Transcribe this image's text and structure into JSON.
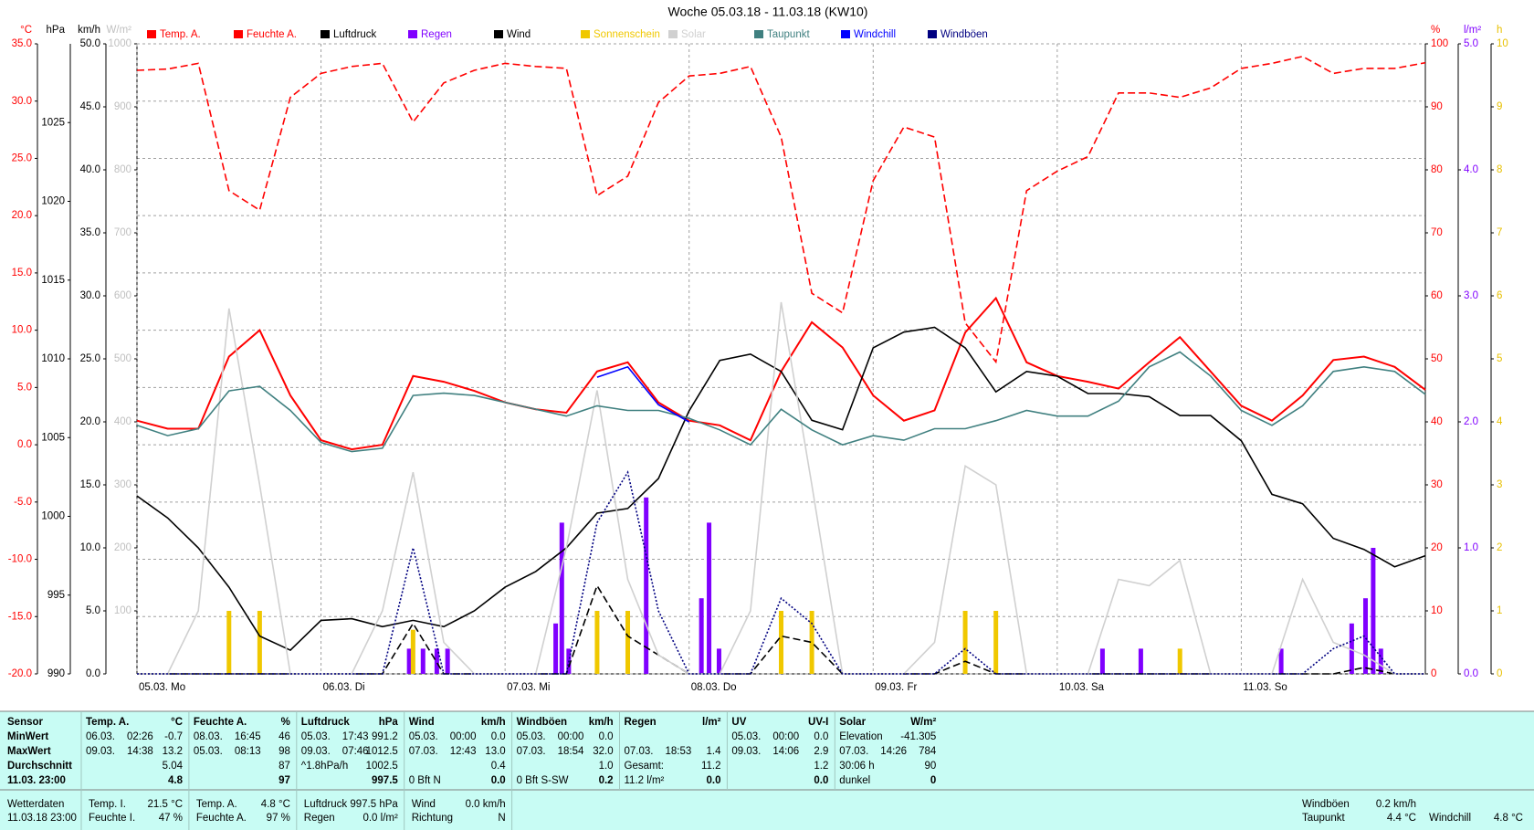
{
  "chart_data": {
    "type": "line",
    "title": "Woche 05.03.18 - 11.03.18 (KW10)",
    "grid": true,
    "x": [
      0,
      4,
      8,
      12,
      16,
      20,
      24,
      28,
      32,
      36,
      40,
      44,
      48,
      52,
      56,
      60,
      64,
      68,
      72,
      76,
      80,
      84,
      88,
      92,
      96,
      100,
      104,
      108,
      112,
      116,
      120,
      124,
      128,
      132,
      136,
      140,
      144,
      148,
      152,
      156,
      160,
      164,
      168
    ],
    "xlim": [
      0,
      168
    ],
    "xticks": [
      {
        "value": 0,
        "label": "05.03. Mo"
      },
      {
        "value": 24,
        "label": "06.03. Di"
      },
      {
        "value": 48,
        "label": "07.03. Mi"
      },
      {
        "value": 72,
        "label": "08.03. Do"
      },
      {
        "value": 96,
        "label": "09.03. Fr"
      },
      {
        "value": 120,
        "label": "10.03. Sa"
      },
      {
        "value": 144,
        "label": "11.03. So"
      }
    ],
    "axes": [
      {
        "id": "temp",
        "label": "°C",
        "side": "left",
        "color": "#ff0000",
        "lim": [
          -20,
          35
        ],
        "ticks": [
          {
            "value": -20,
            "label": "-20.0"
          },
          {
            "value": -15,
            "label": "-15.0"
          },
          {
            "value": -10,
            "label": "-10.0"
          },
          {
            "value": -5,
            "label": "-5.0"
          },
          {
            "value": 0,
            "label": "0.0"
          },
          {
            "value": 5,
            "label": "5.0"
          },
          {
            "value": 10,
            "label": "10.0"
          },
          {
            "value": 15,
            "label": "15.0"
          },
          {
            "value": 20,
            "label": "20.0"
          },
          {
            "value": 25,
            "label": "25.0"
          },
          {
            "value": 30,
            "label": "30.0"
          },
          {
            "value": 35,
            "label": "35.0"
          }
        ]
      },
      {
        "id": "hpa",
        "label": "hPa",
        "side": "left",
        "color": "#000000",
        "lim": [
          990,
          1030
        ],
        "ticks": [
          990,
          995,
          1000,
          1005,
          1010,
          1015,
          1020,
          1025
        ]
      },
      {
        "id": "kmh",
        "label": "km/h",
        "side": "left",
        "color": "#000000",
        "lim": [
          0,
          50
        ],
        "ticks": [
          {
            "value": 0,
            "label": "0.0"
          },
          {
            "value": 5,
            "label": "5.0"
          },
          {
            "value": 10,
            "label": "10.0"
          },
          {
            "value": 15,
            "label": "15.0"
          },
          {
            "value": 20,
            "label": "20.0"
          },
          {
            "value": 25,
            "label": "25.0"
          },
          {
            "value": 30,
            "label": "30.0"
          },
          {
            "value": 35,
            "label": "35.0"
          },
          {
            "value": 40,
            "label": "40.0"
          },
          {
            "value": 45,
            "label": "45.0"
          },
          {
            "value": 50,
            "label": "50.0"
          }
        ]
      },
      {
        "id": "wm2",
        "label": "W/m²",
        "side": "left",
        "color": "#c0c0c0",
        "lim": [
          0,
          1000
        ],
        "ticks": [
          100,
          200,
          300,
          400,
          500,
          600,
          700,
          800,
          900,
          1000
        ]
      },
      {
        "id": "pct",
        "label": "%",
        "side": "right",
        "color": "#ff0000",
        "lim": [
          0,
          100
        ],
        "ticks": [
          0,
          10,
          20,
          30,
          40,
          50,
          60,
          70,
          80,
          90,
          100
        ]
      },
      {
        "id": "lm2",
        "label": "l/m²",
        "side": "right",
        "color": "#8000ff",
        "lim": [
          0,
          5
        ],
        "ticks": [
          {
            "value": 0,
            "label": "0.0"
          },
          {
            "value": 1,
            "label": "1.0"
          },
          {
            "value": 2,
            "label": "2.0"
          },
          {
            "value": 3,
            "label": "3.0"
          },
          {
            "value": 4,
            "label": "4.0"
          },
          {
            "value": 5,
            "label": "5.0"
          }
        ]
      },
      {
        "id": "h",
        "label": "h",
        "side": "right",
        "color": "#e8c000",
        "lim": [
          0,
          10
        ],
        "ticks": [
          0,
          1,
          2,
          3,
          4,
          5,
          6,
          7,
          8,
          9,
          10
        ]
      }
    ],
    "series": [
      {
        "name": "Temp. A.",
        "color": "#ff0000",
        "axis": "temp",
        "kind": "line",
        "style": "solid",
        "values": [
          2.1,
          1.4,
          1.4,
          7.7,
          10.0,
          4.3,
          0.4,
          -0.4,
          0.0,
          6.0,
          5.5,
          4.7,
          3.7,
          3.1,
          2.8,
          6.4,
          7.2,
          3.7,
          2.1,
          1.7,
          0.4,
          6.4,
          10.7,
          8.5,
          4.3,
          2.1,
          3.0,
          9.8,
          12.8,
          7.2,
          6.0,
          5.5,
          4.9,
          7.2,
          9.4,
          6.4,
          3.4,
          2.1,
          4.3,
          7.4,
          7.7,
          6.8,
          4.8
        ]
      },
      {
        "name": "Feuchte A.",
        "color": "#ff0000",
        "axis": "pct",
        "kind": "line",
        "style": "dashed",
        "values": [
          95.8,
          96,
          96.9,
          76.7,
          73.6,
          91.5,
          95.3,
          96.4,
          96.9,
          87.6,
          93.8,
          95.8,
          96.9,
          96.4,
          96.1,
          75.9,
          79.0,
          90.7,
          94.9,
          95.3,
          96.4,
          85.2,
          60.4,
          57.3,
          78.3,
          86.8,
          85.2,
          55.7,
          49.5,
          76.7,
          79.8,
          82.1,
          92.2,
          92.2,
          91.5,
          93.0,
          96.1,
          96.9,
          98.0,
          95.3,
          96.1,
          96.1,
          97
        ]
      },
      {
        "name": "Luftdruck",
        "color": "#000000",
        "axis": "hpa",
        "kind": "line",
        "style": "solid",
        "values": [
          1001.3,
          999.9,
          998.0,
          995.5,
          992.4,
          991.5,
          993.4,
          993.5,
          993.0,
          993.4,
          993.0,
          994.0,
          995.5,
          996.5,
          998.0,
          1000.2,
          1000.5,
          1002.4,
          1006.7,
          1009.9,
          1010.3,
          1009.2,
          1006.1,
          1005.5,
          1010.7,
          1011.7,
          1012.0,
          1010.7,
          1007.9,
          1009.2,
          1008.9,
          1007.8,
          1007.8,
          1007.6,
          1006.4,
          1006.4,
          1004.8,
          1001.4,
          1000.8,
          998.6,
          997.9,
          996.8,
          997.5
        ]
      },
      {
        "name": "Regen",
        "color": "#8000ff",
        "axis": "lm2",
        "kind": "bar",
        "style": "solid",
        "x": [
          35.5,
          37.3,
          39.1,
          40.5,
          54.6,
          55.4,
          56.3,
          66.4,
          73.6,
          74.6,
          75.9,
          125.9,
          130.9,
          149.2,
          158.4,
          160.2,
          161.2,
          162.2
        ],
        "values": [
          0.2,
          0.2,
          0.2,
          0.2,
          0.4,
          1.2,
          0.2,
          1.4,
          0.6,
          1.2,
          0.2,
          0.2,
          0.2,
          0.2,
          0.4,
          0.6,
          1.0,
          0.2
        ]
      },
      {
        "name": "Wind",
        "color": "#000000",
        "axis": "kmh",
        "kind": "line",
        "style": "dashed",
        "values": [
          0,
          0,
          0,
          0,
          0,
          0,
          0,
          0,
          0,
          4.0,
          0,
          0,
          0,
          0,
          0,
          7.0,
          3.0,
          1.5,
          0,
          0,
          0,
          3.0,
          2.5,
          0,
          0,
          0,
          0,
          1.0,
          0,
          0,
          0,
          0,
          0,
          0,
          0,
          0,
          0,
          0,
          0,
          0,
          0.5,
          0,
          0
        ]
      },
      {
        "name": "Sonnenschein",
        "color": "#f0c800",
        "axis": "h",
        "kind": "bar",
        "style": "solid",
        "values": [
          0,
          0,
          0,
          1,
          1,
          0,
          0,
          0,
          0,
          0.7,
          0,
          0,
          0,
          0,
          0,
          1,
          1,
          0,
          0,
          0,
          0,
          1,
          1,
          0,
          0,
          0,
          0,
          1,
          1,
          0,
          0,
          0,
          0,
          0,
          0.4,
          0,
          0,
          0,
          0,
          0,
          0,
          0,
          0
        ]
      },
      {
        "name": "Solar",
        "color": "#d0d0d0",
        "axis": "wm2",
        "kind": "line",
        "style": "solid",
        "values": [
          0,
          0,
          100,
          580,
          300,
          0,
          0,
          0,
          100,
          320,
          50,
          0,
          0,
          0,
          200,
          450,
          150,
          30,
          0,
          0,
          100,
          590,
          300,
          0,
          0,
          0,
          50,
          330,
          300,
          0,
          0,
          0,
          150,
          140,
          180,
          0,
          0,
          0,
          150,
          50,
          30,
          0,
          0
        ]
      },
      {
        "name": "Taupunkt",
        "color": "#408080",
        "axis": "temp",
        "kind": "line",
        "style": "solid",
        "values": [
          1.7,
          0.8,
          1.4,
          4.7,
          5.1,
          3.0,
          0.2,
          -0.6,
          -0.3,
          4.3,
          4.5,
          4.3,
          3.7,
          3.1,
          2.5,
          3.4,
          3.0,
          3.0,
          2.3,
          1.3,
          0.0,
          3.1,
          1.3,
          0.0,
          0.8,
          0.4,
          1.4,
          1.4,
          2.1,
          3.0,
          2.5,
          2.5,
          3.8,
          6.8,
          8.1,
          6.0,
          3.0,
          1.7,
          3.4,
          6.4,
          6.8,
          6.4,
          4.4
        ]
      },
      {
        "name": "Windchill",
        "color": "#0000ff",
        "axis": "temp",
        "kind": "line",
        "style": "solid",
        "values": [
          null,
          null,
          null,
          null,
          null,
          null,
          null,
          null,
          null,
          null,
          null,
          null,
          null,
          null,
          null,
          5.9,
          6.8,
          3.5,
          2.0,
          null,
          null,
          null,
          null,
          null,
          null,
          null,
          null,
          null,
          null,
          null,
          null,
          null,
          null,
          null,
          null,
          null,
          null,
          null,
          null,
          null,
          null,
          null,
          null
        ]
      },
      {
        "name": "Windböen",
        "color": "#000080",
        "axis": "kmh",
        "kind": "line",
        "style": "dotted",
        "values": [
          0,
          0,
          0,
          0,
          0,
          0,
          0,
          0,
          0,
          10.0,
          0,
          0,
          0,
          0,
          0,
          12.0,
          16.0,
          5.0,
          0,
          0,
          0,
          6.0,
          4.0,
          0,
          0,
          0,
          0,
          2.0,
          0,
          0,
          0,
          0,
          0,
          0,
          0,
          0,
          0,
          0,
          0,
          2.0,
          3.0,
          0,
          0
        ]
      }
    ]
  },
  "table": {
    "columns": [
      {
        "title": "Sensor",
        "rows": [
          "MinWert",
          "MaxWert",
          "Durchschnitt",
          "11.03. 23:00"
        ]
      },
      {
        "title": "Temp. A.",
        "unit": "°C",
        "rows": [
          [
            "06.03.",
            "02:26",
            "-0.7"
          ],
          [
            "09.03.",
            "14:38",
            "13.2"
          ],
          [
            "5.04"
          ],
          [
            "4.8"
          ]
        ]
      },
      {
        "title": "Feuchte A.",
        "unit": "%",
        "rows": [
          [
            "08.03.",
            "16:45",
            "46"
          ],
          [
            "05.03.",
            "08:13",
            "98"
          ],
          [
            "87"
          ],
          [
            "97"
          ]
        ]
      },
      {
        "title": "Luftdruck",
        "unit": "hPa",
        "rows": [
          [
            "05.03.",
            "17:43",
            "991.2"
          ],
          [
            "09.03.",
            "07:46",
            "1012.5"
          ],
          [
            "^1.8hPa/h",
            "1002.5"
          ],
          [
            "997.5"
          ]
        ]
      },
      {
        "title": "Wind",
        "unit": "km/h",
        "rows": [
          [
            "05.03.",
            "00:00",
            "0.0"
          ],
          [
            "07.03.",
            "12:43",
            "13.0"
          ],
          [
            "0.4"
          ],
          [
            "0 Bft N",
            "0.0"
          ]
        ]
      },
      {
        "title": "Windböen",
        "unit": "km/h",
        "rows": [
          [
            "05.03.",
            "00:00",
            "0.0"
          ],
          [
            "07.03.",
            "18:54",
            "32.0"
          ],
          [
            "1.0"
          ],
          [
            "0 Bft S-SW",
            "0.2"
          ]
        ]
      },
      {
        "title": "Regen",
        "unit": "l/m²",
        "rows": [
          null,
          [
            "07.03.",
            "18:53",
            "1.4"
          ],
          [
            "Gesamt:",
            "11.2"
          ],
          [
            "11.2 l/m²",
            "0.0"
          ]
        ]
      },
      {
        "title": "UV",
        "unit": "UV-I",
        "rows": [
          [
            "05.03.",
            "00:00",
            "0.0"
          ],
          [
            "09.03.",
            "14:06",
            "2.9"
          ],
          [
            "1.2"
          ],
          [
            "0.0"
          ]
        ]
      },
      {
        "title": "Solar",
        "unit": "W/m²",
        "rows": [
          [
            "Elevation",
            "-41.305"
          ],
          [
            "07.03.",
            "14:26",
            "784"
          ],
          [
            "30:06 h",
            "90"
          ],
          [
            "dunkel",
            "0"
          ]
        ]
      }
    ]
  },
  "current": {
    "groups": [
      [
        [
          "Wetterdaten"
        ],
        [
          "11.03.18 23:00"
        ]
      ],
      [
        [
          "Temp. I.",
          "21.5 °C"
        ],
        [
          "Feuchte I.",
          "47 %"
        ]
      ],
      [
        [
          "Temp. A.",
          "4.8 °C"
        ],
        [
          "Feuchte A.",
          "97 %"
        ]
      ],
      [
        [
          "Luftdruck",
          "997.5 hPa"
        ],
        [
          "Regen",
          "0.0 l/m²"
        ]
      ],
      [
        [
          "Wind",
          "0.0 km/h"
        ],
        [
          "Richtung",
          "N"
        ]
      ]
    ],
    "extra": [
      [
        "Windböen",
        "0.2 km/h"
      ],
      [
        "Taupunkt",
        "4.4 °C"
      ],
      [
        "Windchill",
        "4.8 °C"
      ]
    ]
  }
}
